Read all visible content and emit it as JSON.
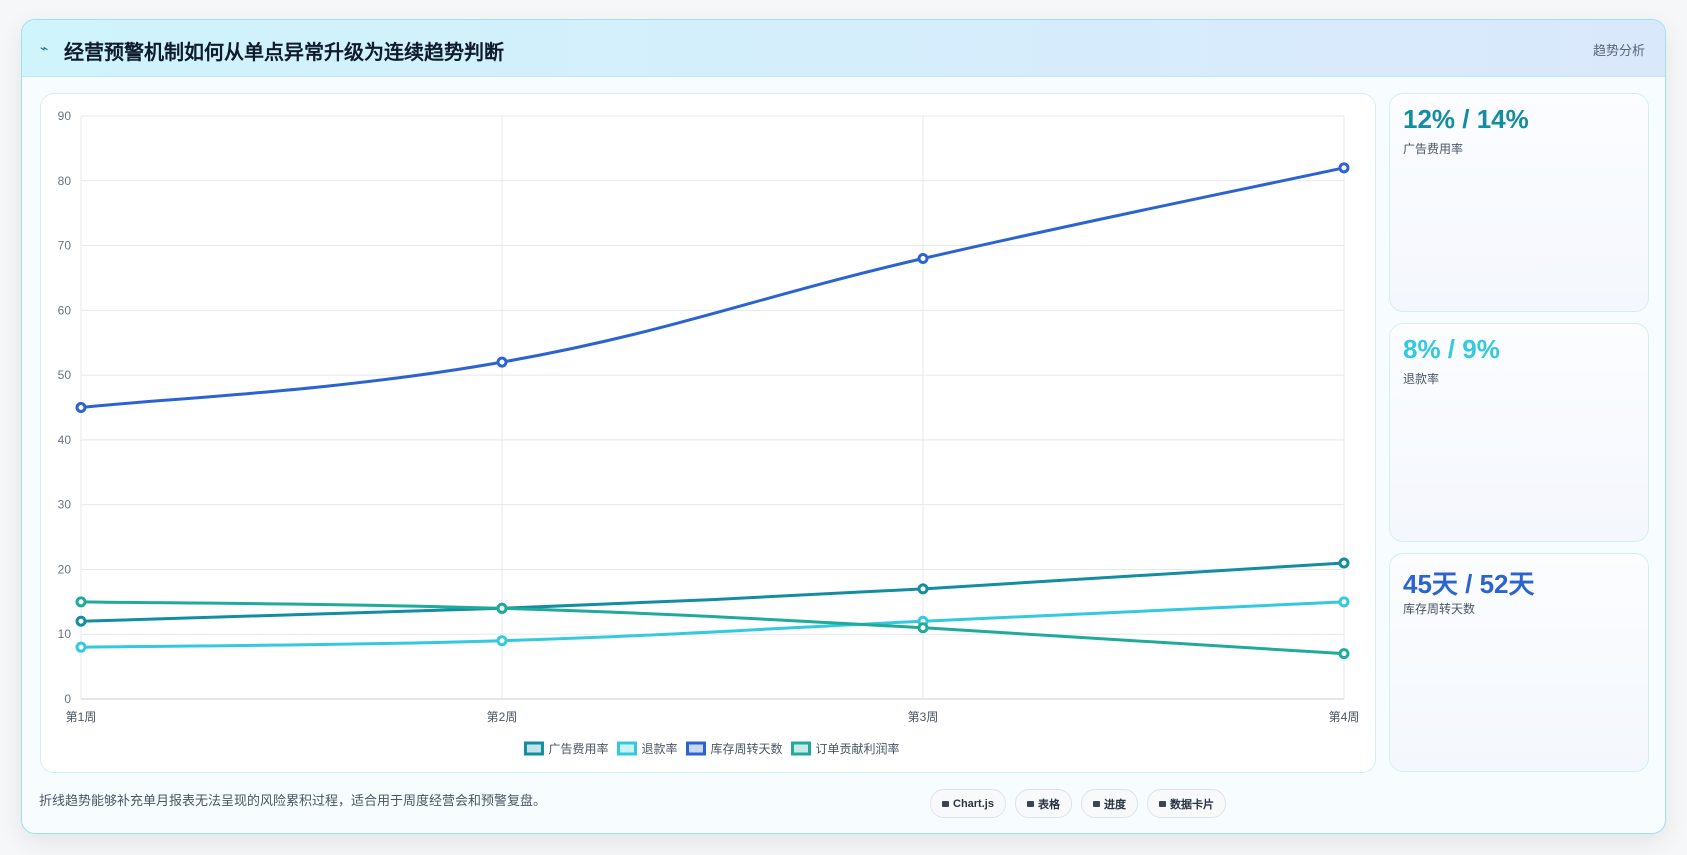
{
  "header": {
    "title": "经营预警机制如何从单点异常升级为连续趋势判断",
    "tag": "趋势分析"
  },
  "chart_data": {
    "type": "line",
    "categories": [
      "第1周",
      "第2周",
      "第3周",
      "第4周"
    ],
    "series": [
      {
        "name": "广告费用率",
        "color": "#138da0",
        "values": [
          12,
          14,
          17,
          21
        ]
      },
      {
        "name": "退款率",
        "color": "#33c9de",
        "values": [
          8,
          9,
          12,
          15
        ]
      },
      {
        "name": "库存周转天数",
        "color": "#2b63d1",
        "values": [
          45,
          52,
          68,
          82
        ]
      },
      {
        "name": "订单贡献利润率",
        "color": "#1faa9b",
        "values": [
          15,
          14,
          11,
          7
        ]
      }
    ],
    "ylim": [
      0,
      90
    ],
    "yticks": [
      0,
      10,
      20,
      30,
      40,
      50,
      60,
      70,
      80,
      90
    ],
    "grid": true,
    "legend": "bottom"
  },
  "cards": [
    {
      "value": "12% / 14%",
      "label": "广告费用率",
      "color": "#138da0"
    },
    {
      "value": "8% / 9%",
      "label": "退款率",
      "color": "#33c9de"
    },
    {
      "value": "45天 / 52天",
      "label": "库存周转天数",
      "color": "#2b63d1"
    }
  ],
  "footer": {
    "note": "折线趋势能够补充单月报表无法呈现的风险累积过程，适合用于周度经营会和预警复盘。",
    "buttons": [
      "Chart.js",
      "表格",
      "进度",
      "数据卡片"
    ]
  }
}
